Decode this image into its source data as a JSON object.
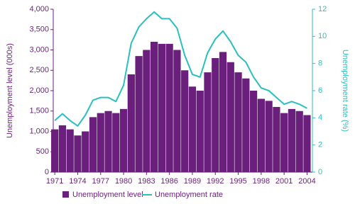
{
  "chart_data": {
    "type": "bar-line",
    "x": [
      1971,
      1972,
      1973,
      1974,
      1975,
      1976,
      1977,
      1978,
      1979,
      1980,
      1981,
      1982,
      1983,
      1984,
      1985,
      1986,
      1987,
      1988,
      1989,
      1990,
      1991,
      1992,
      1993,
      1994,
      1995,
      1996,
      1997,
      1998,
      1999,
      2000,
      2001,
      2002,
      2003,
      2004
    ],
    "xlim": [
      1970.8,
      2004.7
    ],
    "xticks": [
      1971,
      1974,
      1977,
      1980,
      1983,
      1986,
      1989,
      1992,
      1995,
      1998,
      2001,
      2004
    ],
    "y_label": "Unemployment level (000s)",
    "y2_label": "Unemployment rate (%)",
    "ylim": [
      0,
      4000
    ],
    "yticks": [
      0,
      500,
      {
        "value": 1000,
        "label": "1,000"
      },
      {
        "value": 1500,
        "label": "1,500"
      },
      {
        "value": 2000,
        "label": "2,000"
      },
      {
        "value": 2500,
        "label": "2,500"
      },
      {
        "value": 3000,
        "label": "3,000"
      },
      {
        "value": 3500,
        "label": "3,500"
      },
      {
        "value": 4000,
        "label": "4,000"
      }
    ],
    "y2lim": [
      0,
      12
    ],
    "y2ticks": [
      0,
      2,
      4,
      6,
      8,
      10,
      12
    ],
    "series": [
      {
        "name": "Unemployment level",
        "color": "#6b1f7c",
        "type": "bar",
        "values": [
          1050,
          1150,
          1050,
          900,
          1000,
          1350,
          1450,
          1500,
          1450,
          1550,
          2400,
          2850,
          3000,
          3200,
          3150,
          3150,
          3000,
          2500,
          2100,
          2000,
          2450,
          2800,
          2950,
          2700,
          2450,
          2300,
          2000,
          1800,
          1750,
          1600,
          1450,
          1550,
          1500,
          1400
        ]
      },
      {
        "name": "Unemployment rate",
        "color": "#2bbfbf",
        "type": "line",
        "axis": "y2",
        "values": [
          3.8,
          4.3,
          3.8,
          3.4,
          4.2,
          5.3,
          5.5,
          5.5,
          5.2,
          6.4,
          9.5,
          10.7,
          11.3,
          11.8,
          11.3,
          11.3,
          10.6,
          8.6,
          7.2,
          7.0,
          8.8,
          9.8,
          10.4,
          9.6,
          8.6,
          8.1,
          7.0,
          6.2,
          6.0,
          5.5,
          5.0,
          5.2,
          5.0,
          4.7
        ]
      }
    ]
  }
}
